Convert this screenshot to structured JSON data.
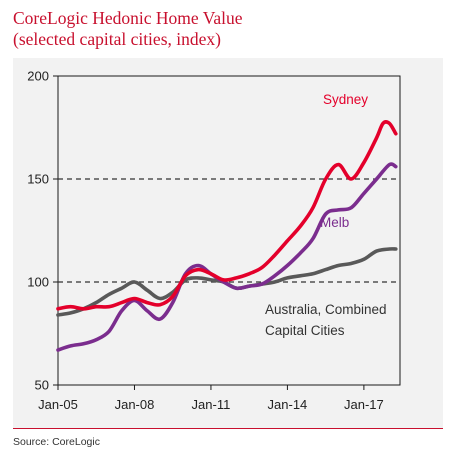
{
  "header": {
    "title": "CoreLogic Hedonic Home Value",
    "subtitle": "(selected capital cities, index)"
  },
  "footer": {
    "source": "Source: CoreLogic"
  },
  "colors": {
    "title": "#c8102e",
    "sydney": "#e4002b",
    "melb": "#7b2d8e",
    "australia": "#595959",
    "panel": "#f2f2f2"
  },
  "chart_data": {
    "type": "line",
    "title": "CoreLogic Hedonic Home Value",
    "subtitle": "(selected capital cities, index)",
    "xlabel": "",
    "ylabel": "",
    "ylim": [
      50,
      200
    ],
    "yticks": [
      50,
      100,
      150,
      200
    ],
    "ytick_labels": [
      "50",
      "100",
      "150",
      "200"
    ],
    "xlim": [
      "2005-01",
      "2018-06"
    ],
    "xticks": [
      "2005-01",
      "2008-01",
      "2011-01",
      "2014-01",
      "2017-01"
    ],
    "xtick_labels": [
      "Jan-05",
      "Jan-08",
      "Jan-11",
      "Jan-14",
      "Jan-17"
    ],
    "reference_lines": [
      100,
      150
    ],
    "grid": false,
    "annotations": [
      {
        "text": "Sydney",
        "series": "Sydney"
      },
      {
        "text": "Melb",
        "series": "Melb"
      },
      {
        "text": "Australia, Combined",
        "series": "Australia, Combined Capital Cities"
      },
      {
        "text": "Capital Cities",
        "series": "Australia, Combined Capital Cities"
      }
    ],
    "series": [
      {
        "name": "Sydney",
        "color": "#e4002b",
        "x": [
          "2005-01",
          "2005-07",
          "2006-01",
          "2006-07",
          "2007-01",
          "2007-07",
          "2008-01",
          "2008-07",
          "2009-01",
          "2009-07",
          "2010-01",
          "2010-07",
          "2011-01",
          "2011-07",
          "2012-01",
          "2012-07",
          "2013-01",
          "2013-07",
          "2014-01",
          "2014-07",
          "2015-01",
          "2015-07",
          "2016-01",
          "2016-07",
          "2017-01",
          "2017-07",
          "2017-10",
          "2018-01",
          "2018-04"
        ],
        "y": [
          87,
          88,
          87,
          88,
          88,
          90,
          92,
          90,
          89,
          93,
          103,
          106,
          104,
          101,
          102,
          104,
          107,
          113,
          120,
          127,
          136,
          150,
          157,
          150,
          158,
          170,
          177,
          177,
          172
        ]
      },
      {
        "name": "Melb",
        "color": "#7b2d8e",
        "x": [
          "2005-01",
          "2005-07",
          "2006-01",
          "2006-07",
          "2007-01",
          "2007-07",
          "2008-01",
          "2008-07",
          "2009-01",
          "2009-07",
          "2010-01",
          "2010-07",
          "2011-01",
          "2011-07",
          "2012-01",
          "2012-07",
          "2013-01",
          "2013-07",
          "2014-01",
          "2014-07",
          "2015-01",
          "2015-07",
          "2016-01",
          "2016-07",
          "2017-01",
          "2017-07",
          "2018-01",
          "2018-04"
        ],
        "y": [
          67,
          69,
          70,
          72,
          76,
          86,
          91,
          86,
          82,
          90,
          104,
          108,
          104,
          100,
          97,
          98,
          99,
          103,
          108,
          114,
          121,
          133,
          135,
          136,
          143,
          150,
          157,
          156
        ]
      },
      {
        "name": "Australia, Combined Capital Cities",
        "color": "#595959",
        "x": [
          "2005-01",
          "2005-07",
          "2006-01",
          "2006-07",
          "2007-01",
          "2007-07",
          "2008-01",
          "2008-07",
          "2009-01",
          "2009-07",
          "2010-01",
          "2010-07",
          "2011-01",
          "2011-07",
          "2012-01",
          "2012-07",
          "2013-01",
          "2013-07",
          "2014-01",
          "2014-07",
          "2015-01",
          "2015-07",
          "2016-01",
          "2016-07",
          "2017-01",
          "2017-07",
          "2018-01",
          "2018-04"
        ],
        "y": [
          84,
          85,
          87,
          90,
          94,
          97,
          100,
          96,
          92,
          95,
          101,
          102,
          101,
          100,
          97,
          98,
          99,
          100,
          102,
          103,
          104,
          106,
          108,
          109,
          111,
          115,
          116,
          116
        ]
      }
    ]
  }
}
